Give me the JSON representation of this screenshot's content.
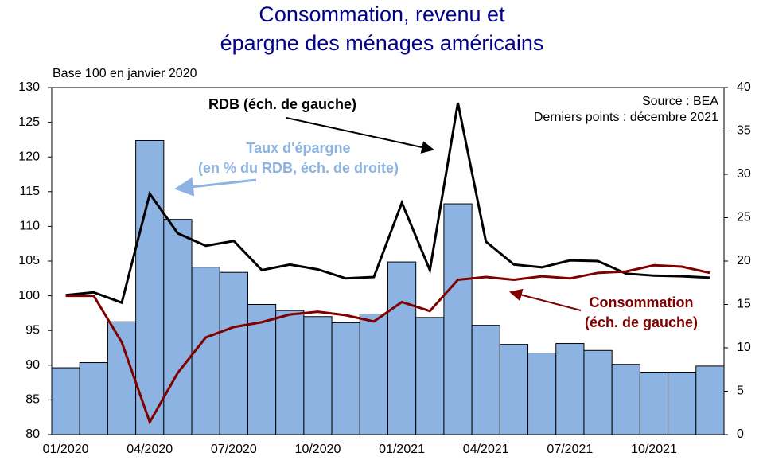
{
  "chart_data": {
    "type": "bar-line",
    "title": [
      "Consommation, revenu et",
      "épargne des ménages américains"
    ],
    "subtitle": "Base 100 en janvier 2020",
    "source": [
      "Source : BEA",
      "Derniers points : décembre 2021"
    ],
    "annotations": [
      "RDB (éch. de gauche)",
      "Taux d'épargne",
      "(en % du RDB, éch. de droite)",
      "Consommation",
      "(éch. de gauche)"
    ],
    "categories": [
      "01/2020",
      null,
      null,
      "04/2020",
      null,
      null,
      "07/2020",
      null,
      null,
      "10/2020",
      null,
      null,
      "01/2021",
      null,
      null,
      "04/2021",
      null,
      null,
      "07/2021",
      null,
      null,
      "10/2021",
      null,
      null
    ],
    "series": [
      {
        "type": "bar",
        "axis": "y2",
        "color": "#8db3e2",
        "values": [
          7.7,
          8.3,
          13.0,
          33.9,
          24.8,
          19.3,
          18.7,
          15.0,
          14.3,
          13.6,
          12.9,
          13.9,
          19.9,
          13.5,
          26.6,
          12.6,
          10.4,
          9.4,
          10.5,
          9.7,
          8.1,
          7.2,
          7.2,
          7.9
        ]
      },
      {
        "type": "line",
        "color": "#000000",
        "values": [
          100.1,
          100.5,
          99.0,
          114.7,
          109.0,
          107.2,
          107.9,
          103.7,
          104.5,
          103.8,
          102.5,
          102.7,
          113.4,
          103.7,
          127.8,
          107.8,
          104.5,
          104.1,
          105.1,
          105.0,
          103.2,
          102.9,
          102.8,
          102.6
        ]
      },
      {
        "type": "line",
        "color": "#800000",
        "values": [
          100.0,
          100.0,
          93.3,
          81.8,
          88.9,
          94.0,
          95.5,
          96.2,
          97.3,
          97.7,
          97.2,
          96.3,
          99.1,
          97.8,
          102.3,
          102.7,
          102.3,
          102.8,
          102.5,
          103.3,
          103.5,
          104.4,
          104.2,
          103.3
        ]
      }
    ],
    "ylim": [
      80,
      130
    ],
    "yticks": [
      80,
      85,
      90,
      95,
      100,
      105,
      110,
      115,
      120,
      125,
      130
    ],
    "y2lim": [
      0,
      40
    ],
    "y2ticks": [
      0,
      5,
      10,
      15,
      20,
      25,
      30,
      35,
      40
    ]
  }
}
